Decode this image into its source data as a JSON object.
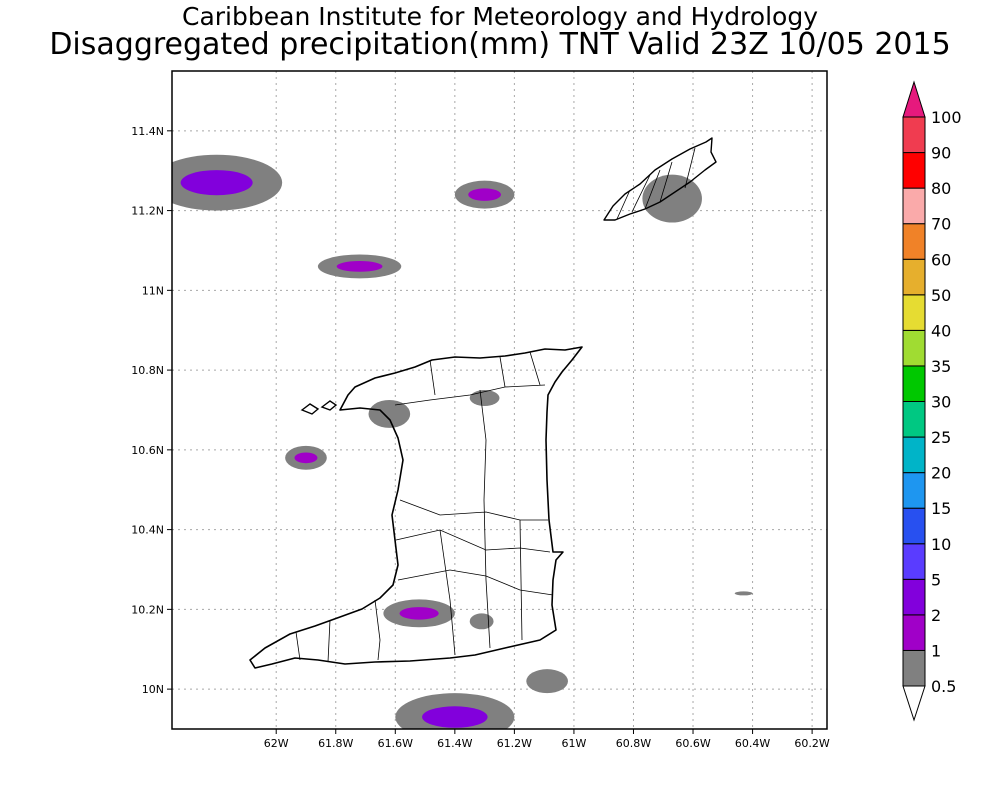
{
  "header": {
    "line1": "Caribbean Institute for Meteorology and Hydrology",
    "line2": "Disaggregated precipitation(mm) TNT Valid 23Z 10/05 2015"
  },
  "map": {
    "lon_range": [
      -62.35,
      -60.15
    ],
    "lat_range": [
      9.9,
      11.55
    ],
    "lon_ticks": [
      {
        "v": -62.0,
        "label": "62W"
      },
      {
        "v": -61.8,
        "label": "61.8W"
      },
      {
        "v": -61.6,
        "label": "61.6W"
      },
      {
        "v": -61.4,
        "label": "61.4W"
      },
      {
        "v": -61.2,
        "label": "61.2W"
      },
      {
        "v": -61.0,
        "label": "61W"
      },
      {
        "v": -60.8,
        "label": "60.8W"
      },
      {
        "v": -60.6,
        "label": "60.6W"
      },
      {
        "v": -60.4,
        "label": "60.4W"
      },
      {
        "v": -60.2,
        "label": "60.2W"
      }
    ],
    "lat_ticks": [
      {
        "v": 10.0,
        "label": "10N"
      },
      {
        "v": 10.2,
        "label": "10.2N"
      },
      {
        "v": 10.4,
        "label": "10.4N"
      },
      {
        "v": 10.6,
        "label": "10.6N"
      },
      {
        "v": 10.8,
        "label": "10.8N"
      },
      {
        "v": 11.0,
        "label": "11N"
      },
      {
        "v": 11.2,
        "label": "11.2N"
      },
      {
        "v": 11.4,
        "label": "11.4N"
      }
    ],
    "grid": true
  },
  "colorbar": {
    "bins": [
      {
        "label": "0.5",
        "color": "#ffffff"
      },
      {
        "label": "1",
        "color": "#808080"
      },
      {
        "label": "2",
        "color": "#a000c8"
      },
      {
        "label": "5",
        "color": "#8200dc"
      },
      {
        "label": "10",
        "color": "#5a3cff"
      },
      {
        "label": "15",
        "color": "#2850f0"
      },
      {
        "label": "20",
        "color": "#1e96f0"
      },
      {
        "label": "25",
        "color": "#00b4c8"
      },
      {
        "label": "30",
        "color": "#00c882"
      },
      {
        "label": "35",
        "color": "#00c800"
      },
      {
        "label": "40",
        "color": "#a0dc32"
      },
      {
        "label": "50",
        "color": "#e6dc32"
      },
      {
        "label": "60",
        "color": "#e6af2d"
      },
      {
        "label": "70",
        "color": "#f08228"
      },
      {
        "label": "80",
        "color": "#faaaaa"
      },
      {
        "label": "90",
        "color": "#ff0000"
      },
      {
        "label": "100",
        "color": "#f03c50"
      }
    ],
    "top_arrow_color": "#e6197d"
  },
  "precip_areas": [
    {
      "lon": -62.2,
      "lat": 11.27,
      "rx": 0.22,
      "ry": 0.07,
      "level": "1",
      "core": "5"
    },
    {
      "lon": -61.3,
      "lat": 11.24,
      "rx": 0.1,
      "ry": 0.035,
      "level": "1",
      "core": "2"
    },
    {
      "lon": -61.72,
      "lat": 11.06,
      "rx": 0.14,
      "ry": 0.03,
      "level": "1",
      "core": "2"
    },
    {
      "lon": -60.67,
      "lat": 11.23,
      "rx": 0.1,
      "ry": 0.06,
      "level": "1",
      "core": null
    },
    {
      "lon": -61.62,
      "lat": 10.69,
      "rx": 0.07,
      "ry": 0.035,
      "level": "1",
      "core": null
    },
    {
      "lon": -61.3,
      "lat": 10.73,
      "rx": 0.05,
      "ry": 0.02,
      "level": "1",
      "core": null
    },
    {
      "lon": -61.9,
      "lat": 10.58,
      "rx": 0.07,
      "ry": 0.03,
      "level": "1",
      "core": "2"
    },
    {
      "lon": -61.52,
      "lat": 10.19,
      "rx": 0.12,
      "ry": 0.035,
      "level": "1",
      "core": "2"
    },
    {
      "lon": -61.31,
      "lat": 10.17,
      "rx": 0.04,
      "ry": 0.02,
      "level": "1",
      "core": null
    },
    {
      "lon": -61.09,
      "lat": 10.02,
      "rx": 0.07,
      "ry": 0.03,
      "level": "1",
      "core": null
    },
    {
      "lon": -61.4,
      "lat": 9.93,
      "rx": 0.2,
      "ry": 0.06,
      "level": "1",
      "core": "5"
    },
    {
      "lon": -60.43,
      "lat": 10.24,
      "rx": 0.03,
      "ry": 0.005,
      "level": "1",
      "core": null
    }
  ]
}
